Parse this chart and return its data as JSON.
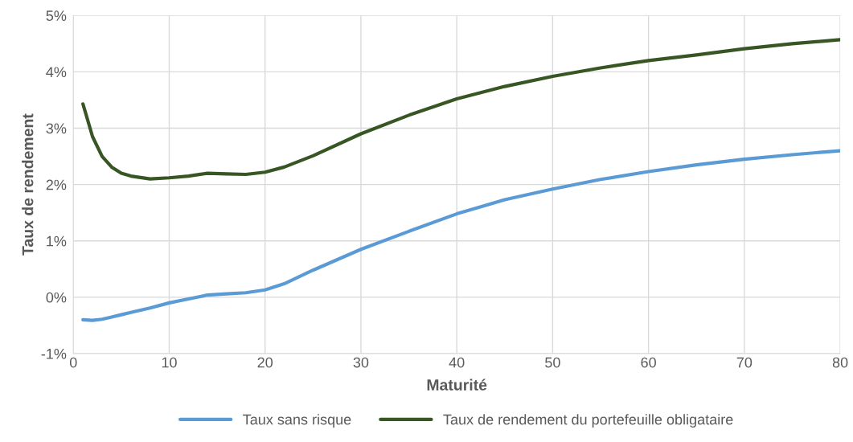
{
  "chart_data": {
    "type": "line",
    "xlabel": "Maturité",
    "ylabel": "Taux de rendement",
    "xlim": [
      0,
      80
    ],
    "xticks": [
      0,
      10,
      20,
      30,
      40,
      50,
      60,
      70,
      80
    ],
    "ylim": [
      -1,
      5
    ],
    "yticks": [
      {
        "value": -1,
        "label": "-1%"
      },
      {
        "value": 0,
        "label": "0%"
      },
      {
        "value": 1,
        "label": "1%"
      },
      {
        "value": 2,
        "label": "2%"
      },
      {
        "value": 3,
        "label": "3%"
      },
      {
        "value": 4,
        "label": "4%"
      },
      {
        "value": 5,
        "label": "5%"
      }
    ],
    "grid": true,
    "legend": "bottom",
    "marker": "none",
    "line_style": "solid",
    "x": [
      1,
      2,
      3,
      4,
      5,
      6,
      8,
      10,
      12,
      14,
      16,
      18,
      20,
      22,
      25,
      30,
      35,
      40,
      45,
      50,
      55,
      60,
      65,
      70,
      75,
      80
    ],
    "series": [
      {
        "name": "Taux sans risque",
        "color": "#5b9bd5",
        "values": [
          -0.4,
          -0.41,
          -0.39,
          -0.35,
          -0.31,
          -0.27,
          -0.19,
          -0.1,
          -0.03,
          0.04,
          0.06,
          0.08,
          0.13,
          0.24,
          0.48,
          0.85,
          1.17,
          1.48,
          1.73,
          1.92,
          2.09,
          2.23,
          2.35,
          2.45,
          2.53,
          2.6
        ]
      },
      {
        "name": "Taux de rendement du portefeuille obligataire",
        "color": "#375623",
        "values": [
          3.43,
          2.85,
          2.5,
          2.31,
          2.2,
          2.15,
          2.1,
          2.12,
          2.15,
          2.2,
          2.19,
          2.18,
          2.22,
          2.31,
          2.51,
          2.9,
          3.23,
          3.52,
          3.74,
          3.92,
          4.07,
          4.2,
          4.3,
          4.41,
          4.5,
          4.57
        ]
      }
    ]
  }
}
